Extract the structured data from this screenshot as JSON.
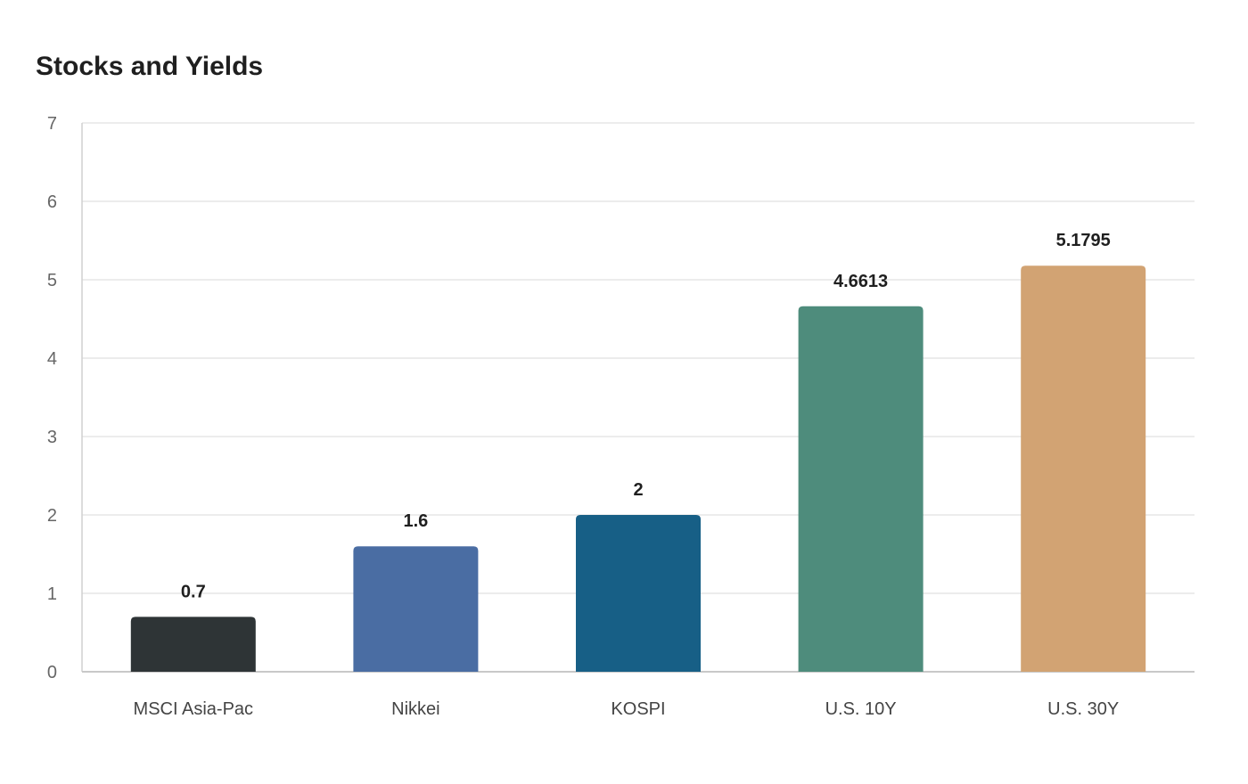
{
  "chart_data": {
    "type": "bar",
    "title": "Stocks and Yields",
    "xlabel": "",
    "ylabel": "",
    "categories": [
      "MSCI Asia-Pac",
      "Nikkei",
      "KOSPI",
      "U.S. 10Y",
      "U.S. 30Y"
    ],
    "values": [
      0.7,
      1.6,
      2,
      4.6613,
      5.1795
    ],
    "data_labels": [
      "0.7",
      "1.6",
      "2",
      "4.6613",
      "5.1795"
    ],
    "colors": [
      "#2e3436",
      "#4a6da3",
      "#175f86",
      "#4e8c7c",
      "#d2a373"
    ],
    "ylim": [
      0,
      7
    ],
    "yticks": [
      "0",
      "1",
      "2",
      "3",
      "4",
      "5",
      "6",
      "7"
    ],
    "grid": true,
    "legend": "none"
  }
}
